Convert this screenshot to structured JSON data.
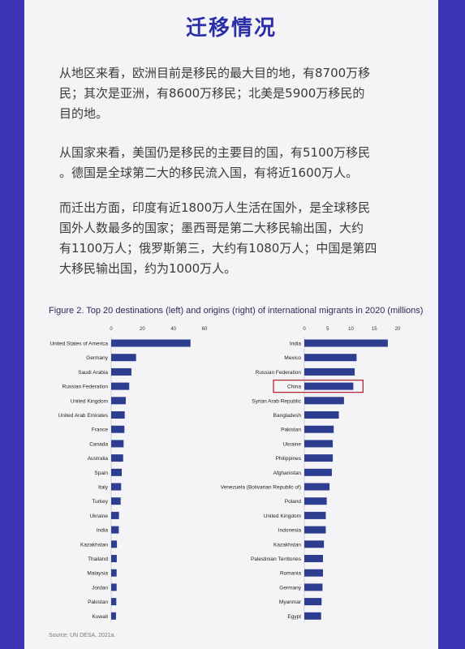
{
  "page": {
    "title": "迁移情况",
    "paragraphs": [
      [
        "从地区来看，欧洲目前是移民的最大目的地，有8700万移",
        "民；其次是亚洲，有8600万移民；北美是5900万移民的",
        "目的地。"
      ],
      [
        "从国家来看，美国仍是移民的主要目的国，有5100万移民",
        "。德国是全球第二大的移民流入国，有将近1600万人。"
      ],
      [
        "而迁出方面，印度有近1800万人生活在国外，是全球移民",
        "国外人数最多的国家；墨西哥是第二大移民输出国，大约",
        "有1100万人；俄罗斯第三，大约有1080万人；中国是第四",
        "大移民输出国，约为1000万人。"
      ]
    ],
    "figure_title": "Figure 2. Top 20 destinations (left) and origins (right) of international migrants in 2020 (millions)",
    "source": "Source: UN DESA, 2021a."
  },
  "colors": {
    "bar": "#2d3d8f",
    "highlight": "#b0283a",
    "accent": "#2b2ea8"
  },
  "chart_data": [
    {
      "type": "bar",
      "orientation": "horizontal",
      "categories": [
        "United States of America",
        "Germany",
        "Saudi Arabia",
        "Russian Federation",
        "United Kingdom",
        "United Arab Emirates",
        "France",
        "Canada",
        "Australia",
        "Spain",
        "Italy",
        "Turkey",
        "Ukraine",
        "India",
        "Kazakhstan",
        "Thailand",
        "Malaysia",
        "Jordan",
        "Pakistan",
        "Kuwait"
      ],
      "values": [
        51,
        16,
        13,
        11.6,
        9.4,
        8.7,
        8.5,
        8.0,
        7.7,
        6.8,
        6.4,
        6.1,
        5.0,
        4.9,
        3.7,
        3.6,
        3.5,
        3.5,
        3.3,
        3.1
      ],
      "xlim": [
        0,
        60
      ],
      "xticks": [
        "0",
        "20",
        "40",
        "60"
      ],
      "title": "",
      "xlabel": "",
      "ylabel": ""
    },
    {
      "type": "bar",
      "orientation": "horizontal",
      "categories": [
        "India",
        "Mexico",
        "Russian Federation",
        "China",
        "Syrian Arab Republic",
        "Bangladesh",
        "Pakistan",
        "Ukraine",
        "Philippines",
        "Afghanistan",
        "Venezuela (Bolivarian Republic of)",
        "Poland",
        "United Kingdom",
        "Indonesia",
        "Kazakhstan",
        "Palestinian Territories",
        "Romania",
        "Germany",
        "Myanmar",
        "Egypt"
      ],
      "values": [
        17.9,
        11.2,
        10.8,
        10.5,
        8.5,
        7.4,
        6.3,
        6.1,
        6.1,
        5.9,
        5.4,
        4.8,
        4.6,
        4.6,
        4.2,
        4.0,
        4.0,
        3.9,
        3.7,
        3.6
      ],
      "xlim": [
        0,
        20
      ],
      "xticks": [
        "0",
        "5",
        "10",
        "15",
        "20"
      ],
      "highlight": "China",
      "title": "",
      "xlabel": "",
      "ylabel": ""
    }
  ]
}
